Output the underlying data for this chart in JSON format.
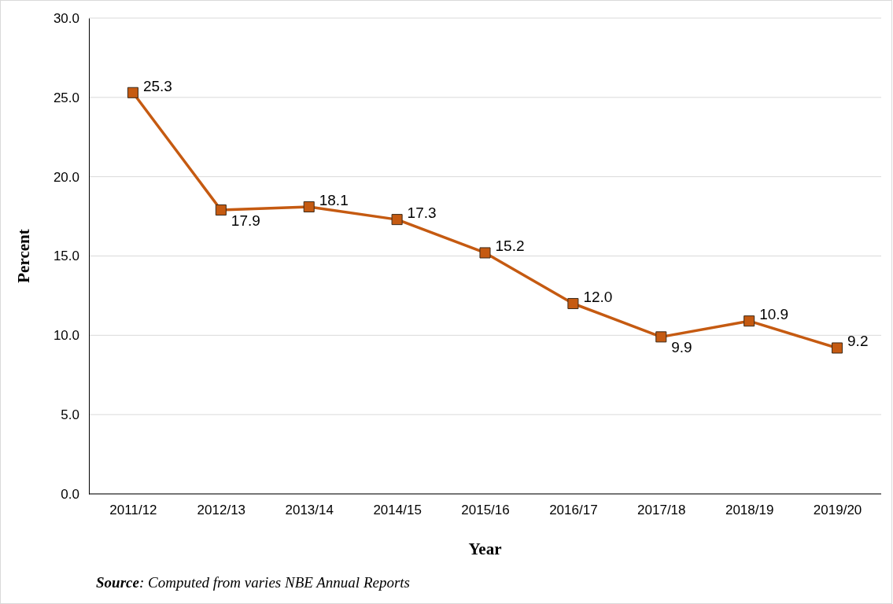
{
  "chart_data": {
    "type": "line",
    "xlabel": "Year",
    "ylabel": "Percent",
    "categories": [
      "2011/12",
      "2012/13",
      "2013/14",
      "2014/15",
      "2015/16",
      "2016/17",
      "2017/18",
      "2018/19",
      "2019/20"
    ],
    "series": [
      {
        "color": "#c55a11",
        "values": [
          25.3,
          17.9,
          18.1,
          17.3,
          15.2,
          12.0,
          9.9,
          10.9,
          9.2
        ],
        "value_labels": [
          "25.3",
          "17.9",
          "18.1",
          "17.3",
          "15.2",
          "12.0",
          "9.9",
          "10.9",
          "9.2"
        ]
      }
    ],
    "ylim": [
      0,
      30
    ],
    "yticks": [
      {
        "value": 0,
        "label": "0.0"
      },
      {
        "value": 5,
        "label": "5.0"
      },
      {
        "value": 10,
        "label": "10.0"
      },
      {
        "value": 15,
        "label": "15.0"
      },
      {
        "value": 20,
        "label": "20.0"
      },
      {
        "value": 25,
        "label": "25.0"
      },
      {
        "value": 30,
        "label": "30.0"
      }
    ],
    "grid": "y",
    "marker": "square",
    "line_style": "solid",
    "annotations": [
      "Source: Computed from varies NBE Annual Reports"
    ]
  }
}
